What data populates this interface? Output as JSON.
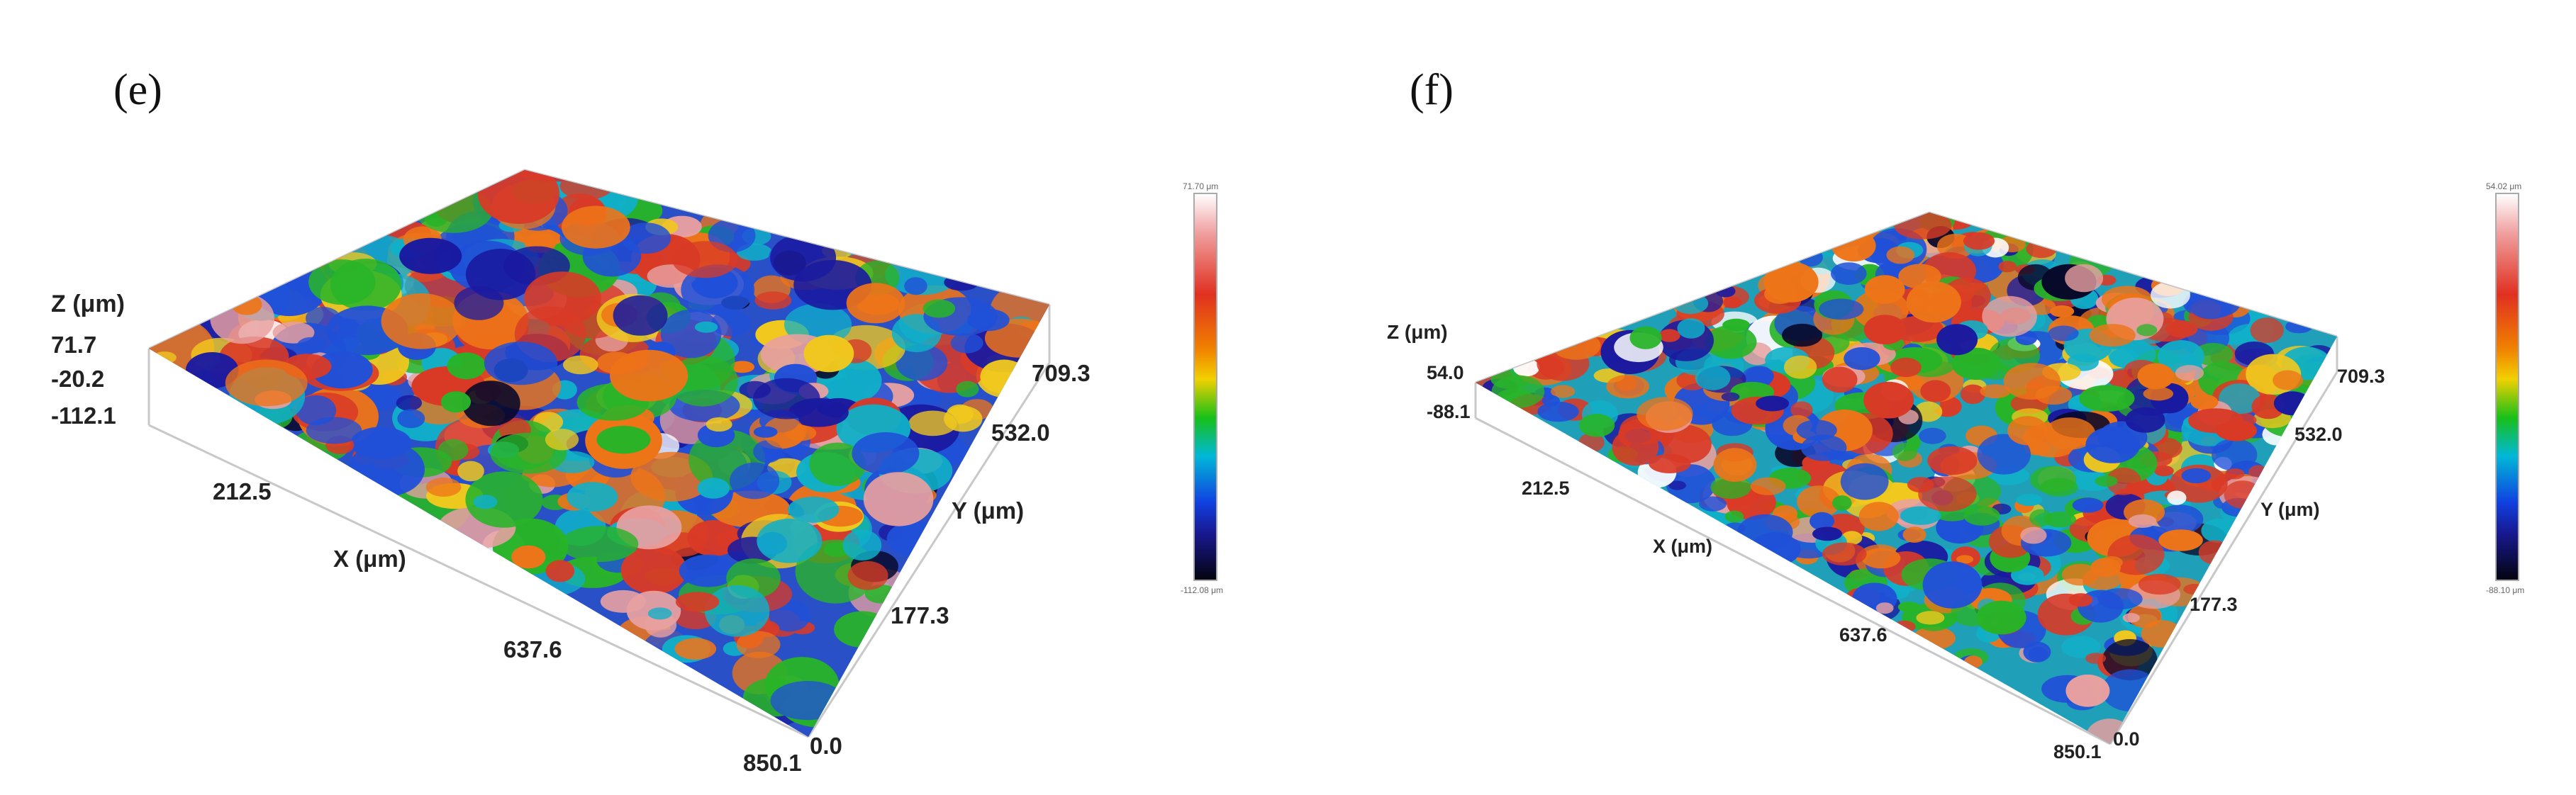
{
  "panels": [
    {
      "label": "(e)",
      "z_axis": {
        "title": "Z (μm)",
        "ticks": [
          "71.7",
          "-20.2",
          "-112.1"
        ]
      },
      "x_axis": {
        "title": "X (μm)",
        "ticks": [
          "212.5",
          "637.6",
          "850.1"
        ]
      },
      "y_axis": {
        "title": "Y (μm)",
        "ticks": [
          "709.3",
          "532.0",
          "177.3",
          "0.0"
        ]
      },
      "colorbar": {
        "max": "71.70 μm",
        "min": "-112.08 μm"
      }
    },
    {
      "label": "(f)",
      "z_axis": {
        "title": "Z (μm)",
        "ticks": [
          "54.0",
          "-88.1"
        ]
      },
      "x_axis": {
        "title": "X (μm)",
        "ticks": [
          "212.5",
          "637.6",
          "850.1"
        ]
      },
      "y_axis": {
        "title": "Y (μm)",
        "ticks": [
          "709.3",
          "532.0",
          "177.3",
          "0.0"
        ]
      },
      "colorbar": {
        "max": "54.02 μm",
        "min": "-88.10 μm"
      }
    }
  ],
  "colormap": [
    "#ffffff",
    "#e8a0a0",
    "#d93a26",
    "#ee7418",
    "#f0c81e",
    "#28b428",
    "#10b0c8",
    "#2050d8",
    "#1a1aa0",
    "#08082a"
  ]
}
